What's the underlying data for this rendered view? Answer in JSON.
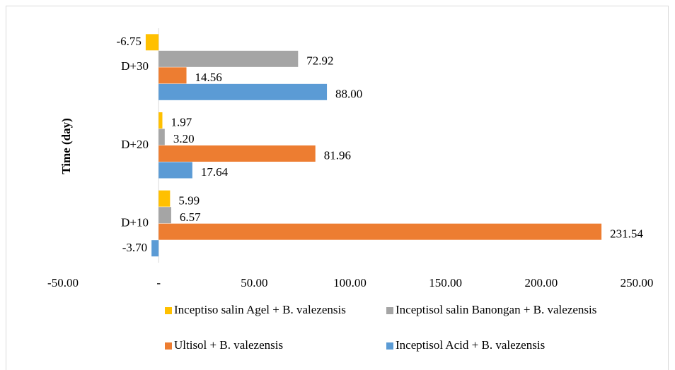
{
  "chart_data": {
    "type": "hbar",
    "y_label": "Time (day)",
    "categories": [
      "D+10",
      "D+20",
      "D+30"
    ],
    "series": [
      {
        "name": "Inceptiso salin Agel + B. valezensis",
        "color": "#ffc000",
        "values": [
          5.99,
          1.97,
          -6.75
        ],
        "value_labels": [
          "5.99",
          "1.97",
          "-6.75"
        ]
      },
      {
        "name": "Inceptisol salin Banongan + B. valezensis",
        "color": "#a5a5a5",
        "values": [
          6.57,
          3.2,
          72.92
        ],
        "value_labels": [
          "6.57",
          "3.20",
          "72.92"
        ]
      },
      {
        "name": "Ultisol + B. valezensis",
        "color": "#ed7d31",
        "values": [
          231.54,
          81.96,
          14.56
        ],
        "value_labels": [
          "231.54",
          "81.96",
          "14.56"
        ]
      },
      {
        "name": "Inceptisol Acid + B. valezensis",
        "color": "#5b9bd5",
        "values": [
          -3.7,
          17.64,
          88.0
        ],
        "value_labels": [
          "-3.70",
          "17.64",
          "88.00"
        ]
      }
    ],
    "xlim": [
      -50,
      250
    ],
    "xticks": [
      {
        "value": -50,
        "label": "-50.00"
      },
      {
        "value": 0,
        "label": "-"
      },
      {
        "value": 50,
        "label": "50.00"
      },
      {
        "value": 100,
        "label": "100.00"
      },
      {
        "value": 150,
        "label": "150.00"
      },
      {
        "value": 200,
        "label": "200.00"
      },
      {
        "value": 250,
        "label": "250.00"
      }
    ]
  }
}
